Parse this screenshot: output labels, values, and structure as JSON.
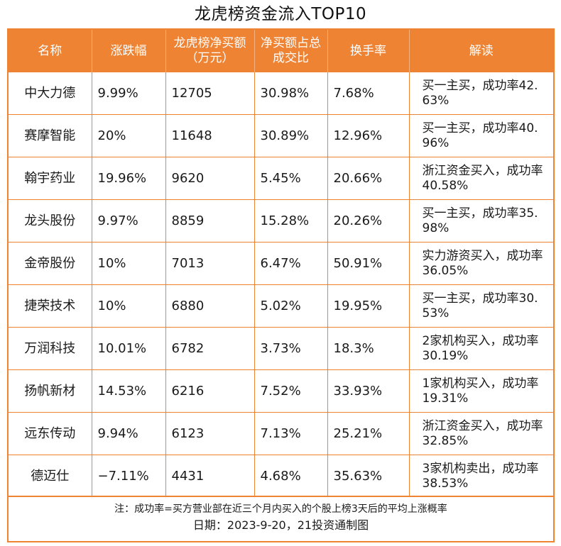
{
  "title": "龙虎榜资金流入TOP10",
  "headers": [
    "名称",
    "涨跌幅",
    "龙虎榜净买额（万元）",
    "净买额占总成交比",
    "换手率",
    "解读"
  ],
  "rows": [
    [
      "中大力德",
      "9.99%",
      "12705",
      "30.98%",
      "7.68%",
      "买一主买，成功率42.63%"
    ],
    [
      "赛摩智能",
      "20%",
      "11648",
      "30.89%",
      "12.96%",
      "买一主买，成功率40.96%"
    ],
    [
      "翰宇药业",
      "19.96%",
      "9620",
      "5.45%",
      "20.66%",
      "浙江资金买入，成功率40.58%"
    ],
    [
      "龙头股份",
      "9.97%",
      "8859",
      "15.28%",
      "20.26%",
      "买一主买，成功率35.98%"
    ],
    [
      "金帝股份",
      "10%",
      "7013",
      "6.47%",
      "50.91%",
      "实力游资买入，成功率36.05%"
    ],
    [
      "捷荣技术",
      "10%",
      "6880",
      "5.02%",
      "19.95%",
      "买一主买，成功率30.53%"
    ],
    [
      "万润科技",
      "10.01%",
      "6782",
      "3.73%",
      "18.3%",
      "2家机构买入，成功率30.19%"
    ],
    [
      "扬帆新材",
      "14.53%",
      "6216",
      "7.52%",
      "33.93%",
      "1家机构买入，成功率19.31%"
    ],
    [
      "远东传动",
      "9.94%",
      "6123",
      "7.13%",
      "25.21%",
      "浙江资金买入，成功率32.85%"
    ],
    [
      "德迈仕",
      "−7.11%",
      "4431",
      "4.68%",
      "35.63%",
      "3家机构卖出，成功率38.53%"
    ]
  ],
  "footer": {
    "note": "注：成功率=买方营业部在近三个月内买入的个股上榜3天后的平均上涨概率",
    "date": "日期：2023-9-20，21投资通制图"
  },
  "colors": {
    "accent": "#ee8333",
    "header_text": "#ffffff"
  }
}
